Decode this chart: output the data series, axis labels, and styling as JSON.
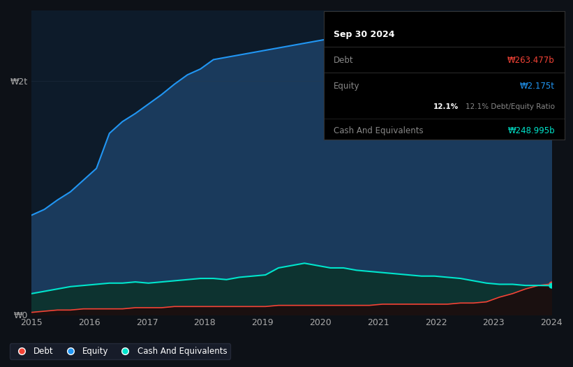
{
  "background_color": "#0d1117",
  "chart_bg_color": "#0d1b2a",
  "title": "Sep 30 2024",
  "tooltip": {
    "date": "Sep 30 2024",
    "debt_label": "Debt",
    "debt_value": "₩263.477b",
    "equity_label": "Equity",
    "equity_value": "₩2.175t",
    "ratio": "12.1% Debt/Equity Ratio",
    "cash_label": "Cash And Equivalents",
    "cash_value": "₩248.995b"
  },
  "ylabel_top": "₩2t",
  "ylabel_bottom": "₩0",
  "x_labels": [
    "2015",
    "2016",
    "2017",
    "2018",
    "2019",
    "2020",
    "2021",
    "2022",
    "2023",
    "2024"
  ],
  "equity_color": "#2196f3",
  "equity_fill": "#1a3a5c",
  "debt_color": "#f44336",
  "debt_fill": "#2a1a1a",
  "cash_color": "#00e5cc",
  "cash_fill": "#0d3330",
  "legend_bg": "#1a1f2e",
  "legend_border": "#2a3040",
  "equity_data": [
    0.85,
    0.9,
    0.98,
    1.05,
    1.15,
    1.25,
    1.55,
    1.65,
    1.72,
    1.8,
    1.88,
    1.97,
    2.05,
    2.1,
    2.18,
    2.2,
    2.22,
    2.24,
    2.26,
    2.28,
    2.3,
    2.32,
    2.34,
    2.36,
    2.38,
    2.4,
    2.42,
    2.43,
    2.42,
    2.4,
    2.39,
    2.37,
    2.35,
    2.33,
    2.3,
    2.28,
    2.27,
    2.3,
    2.35,
    2.38,
    2.175
  ],
  "debt_data": [
    0.02,
    0.03,
    0.04,
    0.04,
    0.05,
    0.05,
    0.05,
    0.05,
    0.06,
    0.06,
    0.06,
    0.07,
    0.07,
    0.07,
    0.07,
    0.07,
    0.07,
    0.07,
    0.07,
    0.08,
    0.08,
    0.08,
    0.08,
    0.08,
    0.08,
    0.08,
    0.08,
    0.09,
    0.09,
    0.09,
    0.09,
    0.09,
    0.09,
    0.1,
    0.1,
    0.11,
    0.15,
    0.18,
    0.22,
    0.25,
    0.263
  ],
  "cash_data": [
    0.18,
    0.2,
    0.22,
    0.24,
    0.25,
    0.26,
    0.27,
    0.27,
    0.28,
    0.27,
    0.28,
    0.29,
    0.3,
    0.31,
    0.31,
    0.3,
    0.32,
    0.33,
    0.34,
    0.4,
    0.42,
    0.44,
    0.42,
    0.4,
    0.4,
    0.38,
    0.37,
    0.36,
    0.35,
    0.34,
    0.33,
    0.33,
    0.32,
    0.31,
    0.29,
    0.27,
    0.26,
    0.26,
    0.25,
    0.25,
    0.249
  ],
  "n_points": 41,
  "ylim": [
    0,
    2.6
  ],
  "ytick_positions": [
    0,
    2.0
  ],
  "ytick_labels": [
    "₩0",
    "₩2t"
  ]
}
